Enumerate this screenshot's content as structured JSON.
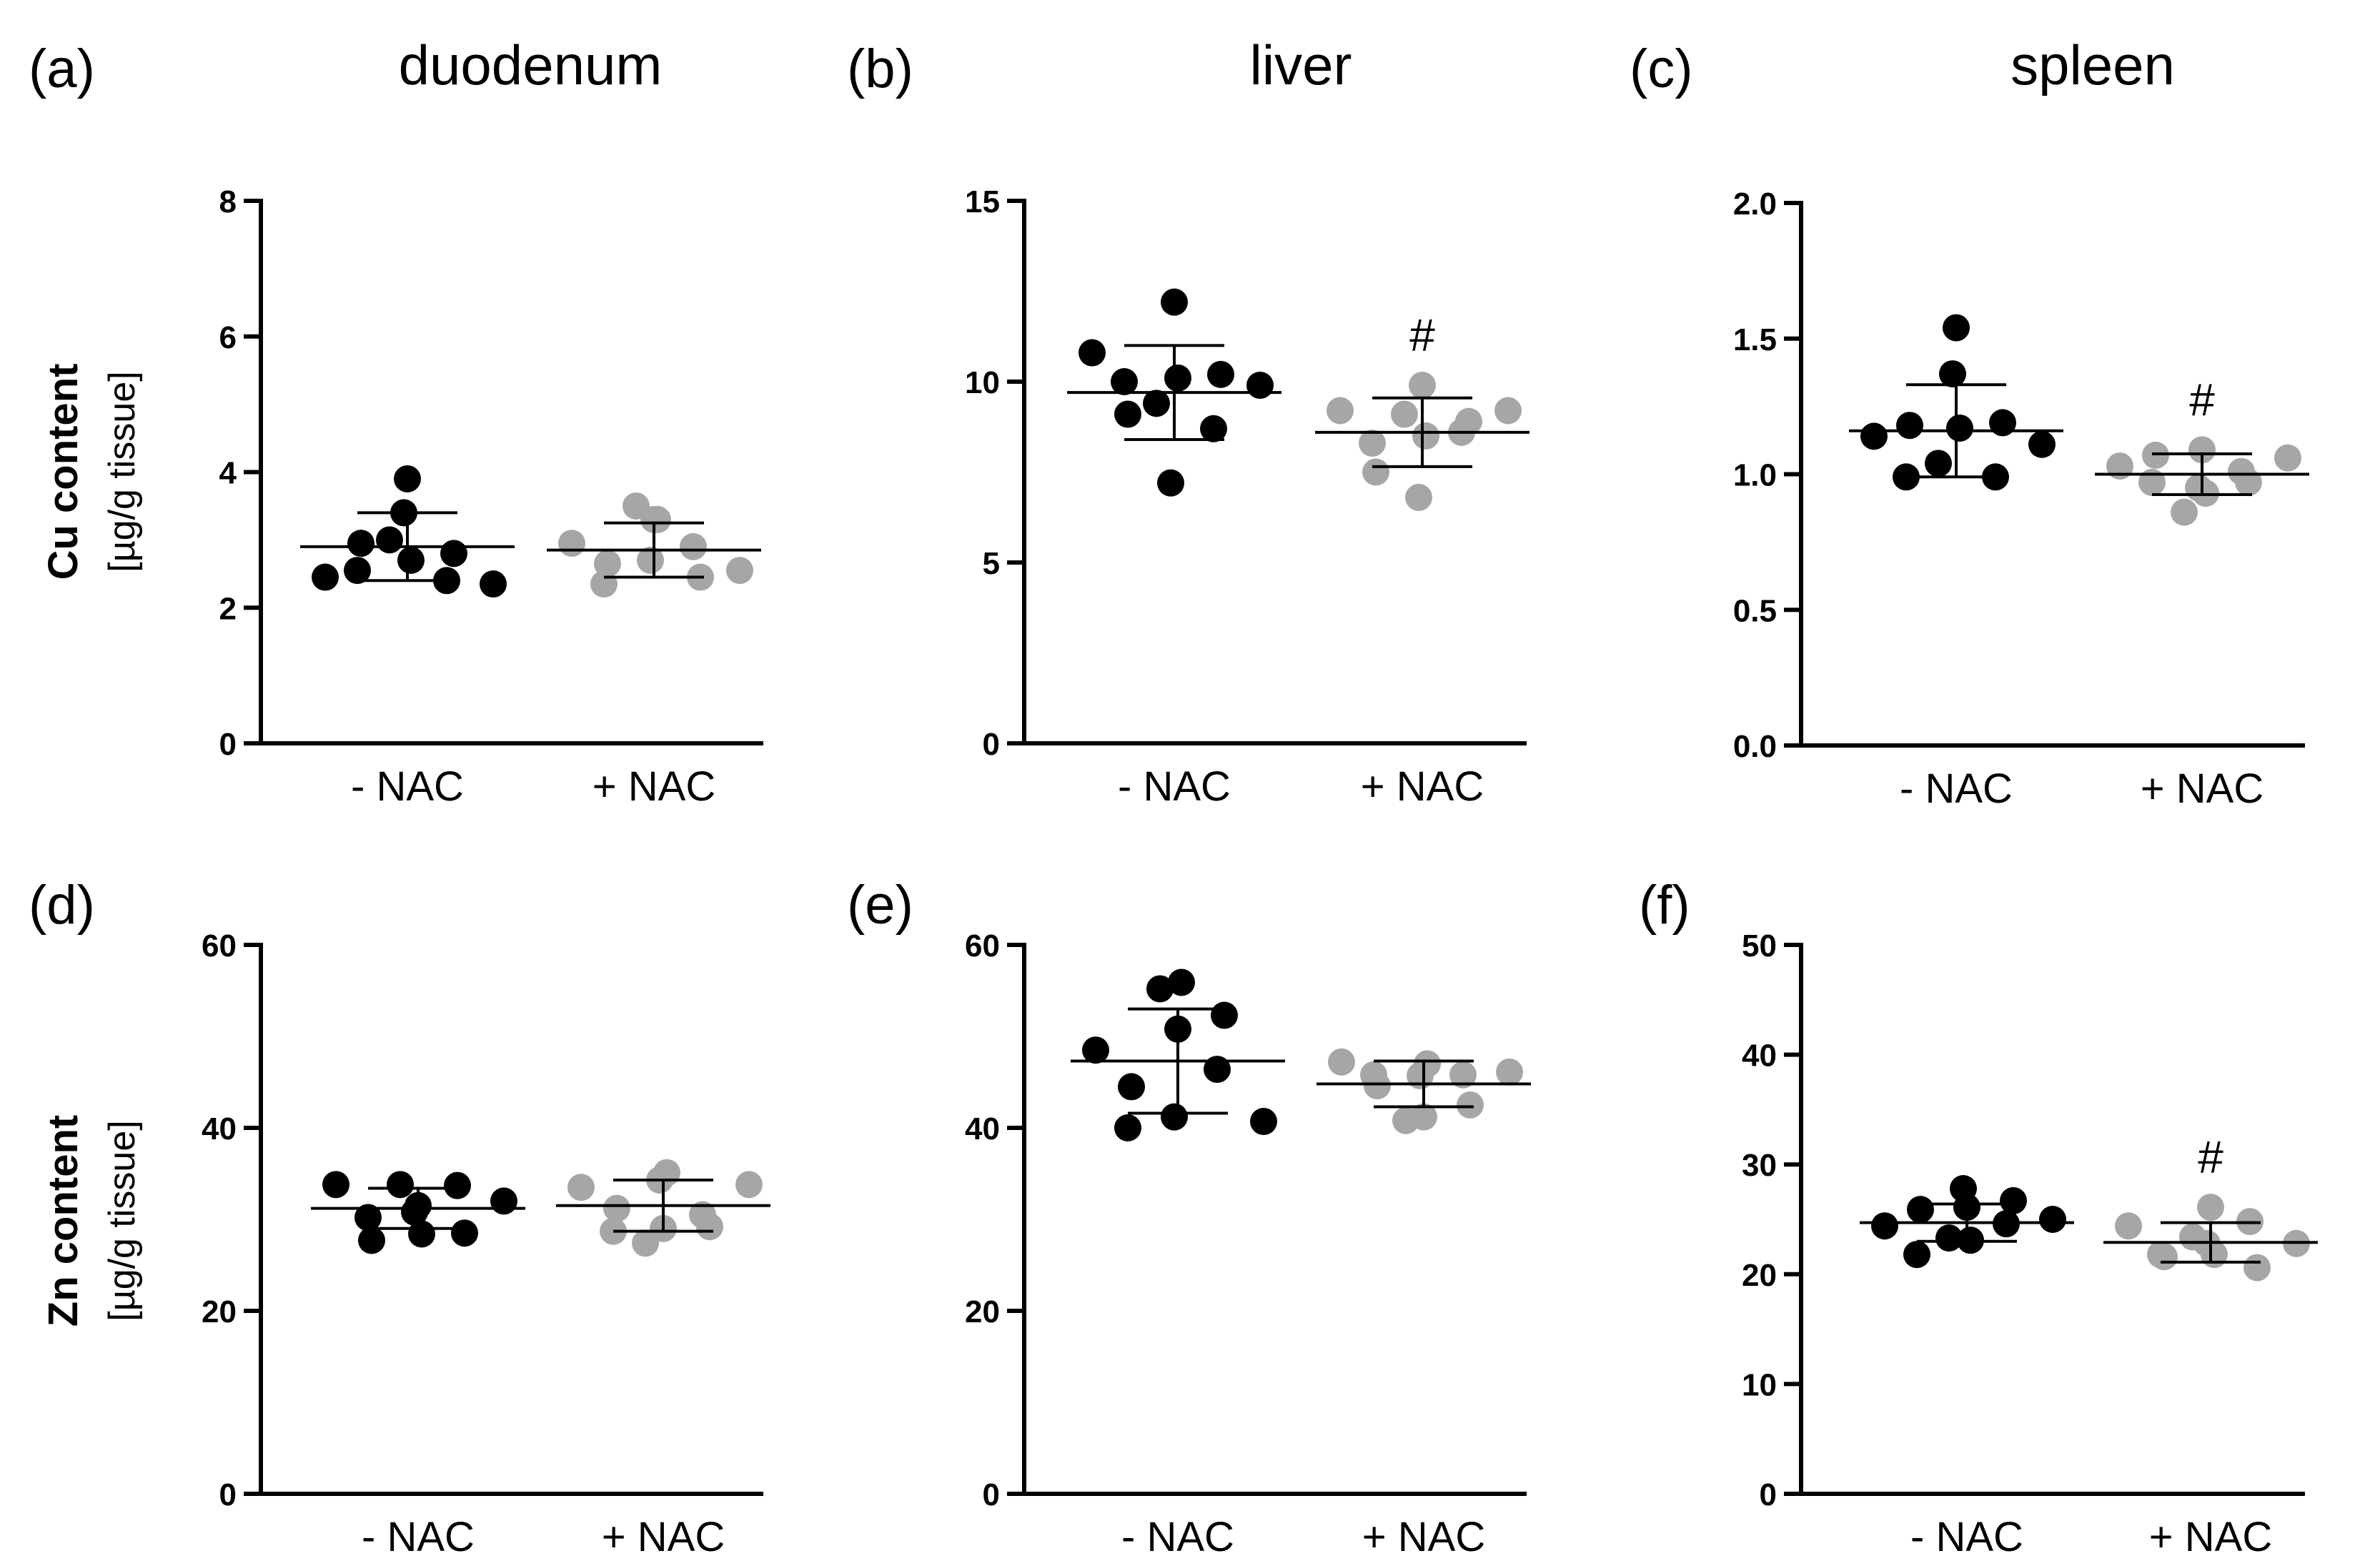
{
  "colors": {
    "minus_nac": "#000000",
    "plus_nac": "#a6a6a6"
  },
  "column_titles": [
    "duodenum",
    "liver",
    "spleen"
  ],
  "row_titles": [
    {
      "title": "Cu content",
      "unit": "[µg/g tissue]"
    },
    {
      "title": "Zn content",
      "unit": "[µg/g tissue]"
    }
  ],
  "chart_data": [
    {
      "type": "scatter",
      "panel_label": "(a)",
      "tissue": "duodenum",
      "element": "Cu",
      "categories": [
        "- NAC",
        "+ NAC"
      ],
      "ylim": [
        0,
        8
      ],
      "yticks": [
        "0",
        "2",
        "4",
        "6",
        "8"
      ],
      "significance": [],
      "series": [
        {
          "name": "- NAC",
          "mean": 2.9,
          "sd": 0.5,
          "values": [
            2.45,
            2.55,
            2.95,
            3.0,
            3.4,
            3.9,
            2.7,
            2.4,
            2.8,
            2.35
          ]
        },
        {
          "name": "+ NAC",
          "mean": 2.85,
          "sd": 0.4,
          "values": [
            2.95,
            2.35,
            2.65,
            3.5,
            2.7,
            3.3,
            3.3,
            2.9,
            2.45,
            2.55
          ]
        }
      ]
    },
    {
      "type": "scatter",
      "panel_label": "(b)",
      "tissue": "liver",
      "element": "Cu",
      "categories": [
        "- NAC",
        "+ NAC"
      ],
      "ylim": [
        0,
        15
      ],
      "yticks": [
        "0",
        "5",
        "10",
        "15"
      ],
      "significance": [
        "",
        "#"
      ],
      "series": [
        {
          "name": "- NAC",
          "mean": 9.7,
          "sd": 1.3,
          "values": [
            10.8,
            10.0,
            9.1,
            9.4,
            7.2,
            12.2,
            10.1,
            8.7,
            10.2,
            9.9
          ]
        },
        {
          "name": "+ NAC",
          "mean": 8.6,
          "sd": 0.95,
          "values": [
            9.2,
            8.3,
            7.5,
            9.1,
            6.8,
            9.9,
            8.5,
            8.6,
            8.9,
            9.2
          ]
        }
      ]
    },
    {
      "type": "scatter",
      "panel_label": "(c)",
      "tissue": "spleen",
      "element": "Cu",
      "categories": [
        "- NAC",
        "+ NAC"
      ],
      "ylim": [
        0,
        2
      ],
      "yticks": [
        "0.0",
        "0.5",
        "1.0",
        "1.5",
        "2.0"
      ],
      "significance": [
        "",
        "#"
      ],
      "series": [
        {
          "name": "- NAC",
          "mean": 1.16,
          "sd": 0.17,
          "values": [
            1.14,
            0.99,
            1.18,
            1.04,
            1.37,
            1.54,
            1.17,
            0.99,
            1.19,
            1.11
          ]
        },
        {
          "name": "+ NAC",
          "mean": 1.0,
          "sd": 0.075,
          "values": [
            1.03,
            0.97,
            1.07,
            0.86,
            0.95,
            1.09,
            0.93,
            1.01,
            0.97,
            1.06
          ]
        }
      ]
    },
    {
      "type": "scatter",
      "panel_label": "(d)",
      "tissue": "duodenum",
      "element": "Zn",
      "categories": [
        "- NAC",
        "+ NAC"
      ],
      "ylim": [
        0,
        60
      ],
      "yticks": [
        "0",
        "20",
        "40",
        "60"
      ],
      "significance": [],
      "series": [
        {
          "name": "- NAC",
          "mean": 31.2,
          "sd": 2.2,
          "values": [
            33.8,
            30.2,
            27.7,
            33.8,
            30.8,
            31.5,
            28.4,
            33.7,
            28.5,
            32.0
          ]
        },
        {
          "name": "+ NAC",
          "mean": 31.5,
          "sd": 2.8,
          "values": [
            33.5,
            28.7,
            31.2,
            27.4,
            34.3,
            29.0,
            35.1,
            30.5,
            29.2,
            33.8
          ]
        }
      ]
    },
    {
      "type": "scatter",
      "panel_label": "(e)",
      "tissue": "liver",
      "element": "Zn",
      "categories": [
        "- NAC",
        "+ NAC"
      ],
      "ylim": [
        0,
        60
      ],
      "yticks": [
        "0",
        "20",
        "40",
        "60"
      ],
      "significance": [],
      "series": [
        {
          "name": "- NAC",
          "mean": 47.3,
          "sd": 5.7,
          "values": [
            48.5,
            40.0,
            44.5,
            55.2,
            41.2,
            50.8,
            55.9,
            46.4,
            52.3,
            40.7
          ]
        },
        {
          "name": "+ NAC",
          "mean": 44.8,
          "sd": 2.5,
          "values": [
            47.2,
            45.8,
            44.6,
            40.8,
            45.7,
            41.2,
            47.0,
            45.8,
            42.5,
            46.1
          ]
        }
      ]
    },
    {
      "type": "scatter",
      "panel_label": "(f)",
      "tissue": "spleen",
      "element": "Zn",
      "categories": [
        "- NAC",
        "+ NAC"
      ],
      "ylim": [
        0,
        50
      ],
      "yticks": [
        "0",
        "10",
        "20",
        "30",
        "40",
        "50"
      ],
      "significance": [
        "",
        "#"
      ],
      "series": [
        {
          "name": "- NAC",
          "mean": 24.7,
          "sd": 1.7,
          "values": [
            24.4,
            21.8,
            25.9,
            23.3,
            27.8,
            26.1,
            23.1,
            24.6,
            26.7,
            25.0
          ]
        },
        {
          "name": "+ NAC",
          "mean": 22.9,
          "sd": 1.8,
          "values": [
            24.4,
            21.8,
            21.6,
            23.4,
            22.8,
            26.1,
            21.8,
            24.8,
            20.6,
            22.8
          ]
        }
      ]
    }
  ]
}
